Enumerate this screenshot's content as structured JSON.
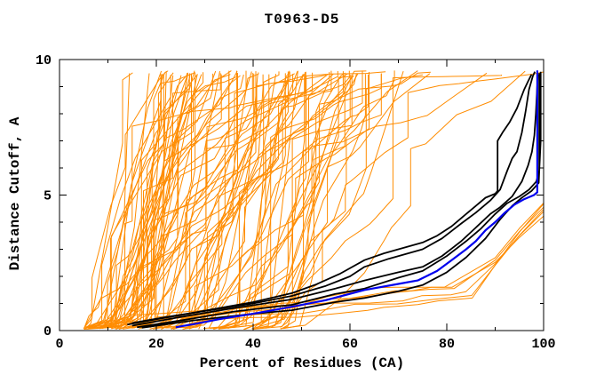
{
  "figure": {
    "title": "T0963-D5"
  },
  "axes": {
    "xlabel": "Percent of Residues (CA)",
    "ylabel": "Distance Cutoff, A",
    "x_tick_labels": [
      "0",
      "20",
      "40",
      "60",
      "80",
      "100"
    ],
    "y_tick_labels": [
      "0",
      "5",
      "10"
    ]
  },
  "colors": {
    "background": "#ffffff",
    "frame": "#000000",
    "text": "#000000",
    "orange_curves": "#ff8c00",
    "black_curves": "#000000",
    "blue_curve": "#0000ee"
  },
  "chart_data": {
    "type": "line",
    "title": "T0963-D5",
    "xlabel": "Percent of Residues (CA)",
    "ylabel": "Distance Cutoff, A",
    "xlim": [
      0,
      100
    ],
    "ylim": [
      0,
      10
    ],
    "grid": false,
    "legend": "none",
    "x_ticks_major": [
      0,
      20,
      40,
      60,
      80,
      100
    ],
    "x_ticks_minor": [
      10,
      30,
      50,
      70,
      90
    ],
    "y_ticks_major": [
      0,
      5,
      10
    ],
    "y_ticks_minor": [
      1,
      2,
      3,
      4,
      6,
      7,
      8,
      9
    ],
    "series": [
      {
        "name": "highlighted-model-blue",
        "color": "#0000ee",
        "width": 2.2,
        "points": [
          [
            24,
            0.12
          ],
          [
            28,
            0.25
          ],
          [
            33,
            0.42
          ],
          [
            40,
            0.62
          ],
          [
            48,
            0.88
          ],
          [
            55,
            1.12
          ],
          [
            63,
            1.5
          ],
          [
            70,
            1.72
          ],
          [
            74,
            1.85
          ],
          [
            78,
            2.2
          ],
          [
            81,
            2.6
          ],
          [
            84,
            3.0
          ],
          [
            86,
            3.3
          ],
          [
            88,
            3.7
          ],
          [
            90,
            4.0
          ],
          [
            92,
            4.35
          ],
          [
            94,
            4.65
          ],
          [
            96,
            4.85
          ],
          [
            98,
            5.0
          ],
          [
            98.7,
            5.1
          ],
          [
            98.7,
            9.6
          ]
        ]
      },
      {
        "name": "group-model-black-1",
        "color": "#000000",
        "width": 1.8,
        "points": [
          [
            14,
            0.22
          ],
          [
            20,
            0.42
          ],
          [
            26,
            0.6
          ],
          [
            32,
            0.8
          ],
          [
            40,
            1.05
          ],
          [
            48,
            1.38
          ],
          [
            53,
            1.7
          ],
          [
            58,
            2.1
          ],
          [
            63,
            2.6
          ],
          [
            67,
            2.85
          ],
          [
            71,
            3.05
          ],
          [
            75,
            3.25
          ],
          [
            78,
            3.5
          ],
          [
            81,
            3.85
          ],
          [
            84,
            4.3
          ],
          [
            86,
            4.6
          ],
          [
            88,
            4.9
          ],
          [
            90,
            5.05
          ],
          [
            90.5,
            5.15
          ],
          [
            90.5,
            7.0
          ],
          [
            91.5,
            7.3
          ],
          [
            93,
            7.7
          ],
          [
            94.5,
            8.2
          ],
          [
            96,
            8.9
          ],
          [
            96.8,
            9.2
          ],
          [
            97.5,
            9.45
          ]
        ]
      },
      {
        "name": "group-model-black-2",
        "color": "#000000",
        "width": 1.8,
        "points": [
          [
            15,
            0.28
          ],
          [
            22,
            0.5
          ],
          [
            30,
            0.72
          ],
          [
            40,
            1.0
          ],
          [
            48,
            1.28
          ],
          [
            55,
            1.65
          ],
          [
            60,
            2.0
          ],
          [
            63,
            2.35
          ],
          [
            68,
            2.65
          ],
          [
            72,
            2.85
          ],
          [
            75,
            3.0
          ],
          [
            79,
            3.4
          ],
          [
            83,
            3.95
          ],
          [
            86,
            4.35
          ],
          [
            89,
            4.8
          ],
          [
            91,
            5.2
          ],
          [
            92.5,
            5.9
          ],
          [
            93.5,
            6.35
          ],
          [
            94.5,
            6.6
          ],
          [
            95.5,
            7.3
          ],
          [
            96.3,
            8.1
          ],
          [
            97,
            8.9
          ],
          [
            97.8,
            9.4
          ],
          [
            98.2,
            9.55
          ]
        ]
      },
      {
        "name": "group-model-black-3",
        "color": "#000000",
        "width": 1.8,
        "points": [
          [
            15,
            0.18
          ],
          [
            25,
            0.5
          ],
          [
            35,
            0.8
          ],
          [
            48,
            1.15
          ],
          [
            57,
            1.55
          ],
          [
            63,
            1.85
          ],
          [
            70,
            2.15
          ],
          [
            75,
            2.35
          ],
          [
            79,
            2.75
          ],
          [
            83,
            3.3
          ],
          [
            86,
            3.8
          ],
          [
            89,
            4.3
          ],
          [
            91,
            4.55
          ],
          [
            93.5,
            4.95
          ],
          [
            95.5,
            5.5
          ],
          [
            96.8,
            6.1
          ],
          [
            97.6,
            6.6
          ],
          [
            98.1,
            7.2
          ],
          [
            98.4,
            8.0
          ],
          [
            98.8,
            9.45
          ]
        ]
      },
      {
        "name": "group-model-black-4",
        "color": "#000000",
        "width": 1.8,
        "points": [
          [
            16,
            0.12
          ],
          [
            26,
            0.4
          ],
          [
            36,
            0.7
          ],
          [
            48,
            0.95
          ],
          [
            57,
            1.35
          ],
          [
            63,
            1.55
          ],
          [
            70,
            1.95
          ],
          [
            75,
            2.2
          ],
          [
            80,
            2.75
          ],
          [
            84,
            3.3
          ],
          [
            87,
            3.75
          ],
          [
            90,
            4.3
          ],
          [
            92.5,
            4.7
          ],
          [
            95,
            4.95
          ],
          [
            97,
            5.2
          ],
          [
            98.5,
            5.5
          ],
          [
            99.1,
            5.9
          ],
          [
            99.1,
            9.5
          ]
        ]
      },
      {
        "name": "group-model-black-5",
        "color": "#000000",
        "width": 1.8,
        "points": [
          [
            17,
            0.1
          ],
          [
            28,
            0.38
          ],
          [
            40,
            0.62
          ],
          [
            48,
            0.75
          ],
          [
            57,
            1.05
          ],
          [
            63,
            1.2
          ],
          [
            70,
            1.45
          ],
          [
            75,
            1.68
          ],
          [
            80,
            2.15
          ],
          [
            84,
            2.7
          ],
          [
            88,
            3.4
          ],
          [
            91,
            4.1
          ],
          [
            93.5,
            4.6
          ],
          [
            95.5,
            4.9
          ],
          [
            97.5,
            5.15
          ],
          [
            99,
            5.45
          ],
          [
            99.4,
            7.0
          ],
          [
            99.4,
            9.55
          ]
        ]
      },
      {
        "name": "other-predictions-orange",
        "color": "#ff8c00",
        "width": 1,
        "generated": true,
        "count": 106,
        "low_count": 6,
        "seed": 11,
        "x_start_range": [
          5,
          49
        ],
        "y_top_range": [
          9.4,
          9.6
        ],
        "low_end_y_range": [
          4.2,
          5.1
        ],
        "note": "approx. 110 background prediction curves, monotone rising from y=0 near x=5-50% up to cutoff ~9.5; a few low curves reach x=100% below cutoff 5"
      }
    ]
  }
}
